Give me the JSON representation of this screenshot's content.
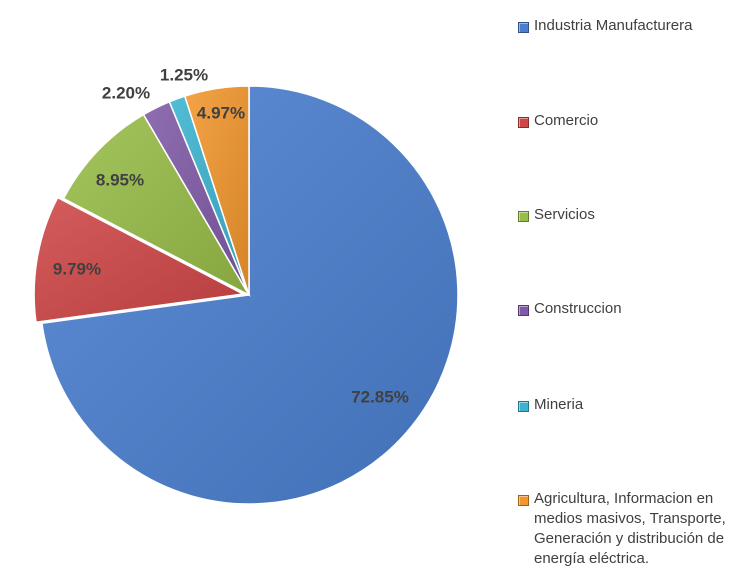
{
  "chart_data": {
    "type": "pie",
    "categories": [
      "Industria Manufacturera",
      "Comercio",
      "Servicios",
      "Construccion",
      "Mineria",
      "Agricultura, Informacion en medios masivos, Transporte, Generación y distribución de energía eléctrica."
    ],
    "values": [
      72.85,
      9.79,
      8.95,
      2.2,
      1.25,
      4.97
    ],
    "data_labels": [
      "72.85%",
      "9.79%",
      "8.95%",
      "2.20%",
      "1.25%",
      "4.97%"
    ],
    "colors": [
      "#4a7fd0",
      "#cf4646",
      "#98bd48",
      "#7f5aa6",
      "#3cb4cf",
      "#f2962e"
    ],
    "title": "",
    "legend_position": "right"
  }
}
